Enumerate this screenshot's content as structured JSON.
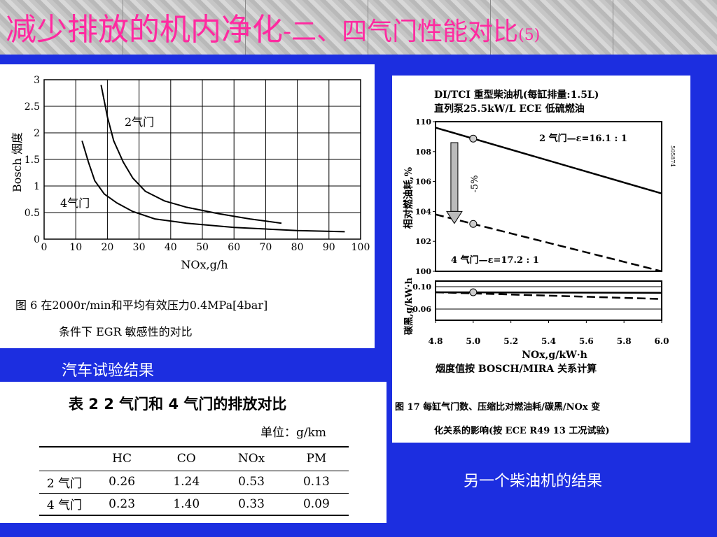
{
  "slide": {
    "title_main": "减少排放的机内净化",
    "title_sub": "-二、四气门性能对比",
    "title_num": "(5)",
    "caption_left": "汽车试验结果",
    "caption_right": "另一个柴油机的结果"
  },
  "colors": {
    "background": "#1c2ee0",
    "title": "#ff2aa0",
    "caption": "#ffffff"
  },
  "chart_data": [
    {
      "type": "line",
      "ylabel": "Bosch 烟度",
      "xlabel": "NOx,g/h",
      "xlim": [
        0,
        100
      ],
      "ylim": [
        0,
        3
      ],
      "xticks": [
        "0",
        "10",
        "20",
        "30",
        "40",
        "50",
        "60",
        "70",
        "80",
        "90",
        "100"
      ],
      "yticks": [
        "0",
        "0.5",
        "1",
        "1.5",
        "2",
        "2.5",
        "3"
      ],
      "grid": true,
      "series": [
        {
          "name": "2气门",
          "x": [
            18,
            20,
            22,
            25,
            28,
            32,
            38,
            45,
            55,
            65,
            75
          ],
          "y": [
            2.9,
            2.3,
            1.85,
            1.45,
            1.15,
            0.9,
            0.72,
            0.6,
            0.48,
            0.38,
            0.3
          ]
        },
        {
          "name": "4气门",
          "x": [
            12,
            14,
            16,
            19,
            23,
            28,
            35,
            45,
            60,
            80,
            95
          ],
          "y": [
            1.85,
            1.45,
            1.1,
            0.85,
            0.68,
            0.52,
            0.38,
            0.3,
            0.22,
            0.16,
            0.14
          ]
        }
      ],
      "caption_line1": "图 6   在2000r/min和平均有效压力0.4MPa[4bar]",
      "caption_line2": "条件下 EGR 敏感性的对比"
    },
    {
      "type": "line",
      "header_line1": "DI/TCI 重型柴油机(每缸排量:1.5L)",
      "header_line2": "直列泵25.5kW/L   ECE 低硫燃油",
      "ylabel": "相对燃油耗,%",
      "xlabel": "NOx,g/kW·h",
      "xlim": [
        4.8,
        6.0
      ],
      "ylim": [
        100,
        110
      ],
      "xticks": [
        "4.8",
        "5.0",
        "5.2",
        "5.4",
        "5.6",
        "5.8",
        "6.0"
      ],
      "yticks": [
        "100",
        "102",
        "104",
        "106",
        "108",
        "110"
      ],
      "series": [
        {
          "name": "2 气门—ε=16.1 : 1",
          "x": [
            4.8,
            6.0
          ],
          "y": [
            109.6,
            105.2
          ]
        },
        {
          "name": "4 气门—ε=17.2 : 1",
          "x": [
            4.8,
            6.0
          ],
          "y": [
            103.8,
            100.0
          ]
        }
      ],
      "annotation": "-5%",
      "lower_panel": {
        "ylabel": "碳黑,g/kW·h",
        "yticks": [
          "0.06",
          "0.10"
        ],
        "ylim": [
          0.04,
          0.11
        ],
        "series": [
          {
            "name": "2 气门",
            "x": [
              4.8,
              6.0
            ],
            "y": [
              0.09,
              0.089
            ]
          },
          {
            "name": "4 气门",
            "x": [
              4.8,
              6.0
            ],
            "y": [
              0.09,
              0.078
            ]
          }
        ]
      },
      "footer": "烟度值按 BOSCH/MIRA 关系计算",
      "side_code": "505874",
      "caption_line1": "图 17   每缸气门数、压缩比对燃油耗/碳黑/NOx 变",
      "caption_line2": "化关系的影响(按 ECE R49 13 工况试验)"
    },
    {
      "type": "table",
      "title": "表 2   2 气门和 4 气门的排放对比",
      "unit": "单位：g/km",
      "columns": [
        "",
        "HC",
        "CO",
        "NOx",
        "PM"
      ],
      "rows": [
        [
          "2 气门",
          "0.26",
          "1.24",
          "0.53",
          "0.13"
        ],
        [
          "4 气门",
          "0.23",
          "1.40",
          "0.33",
          "0.09"
        ]
      ]
    }
  ]
}
